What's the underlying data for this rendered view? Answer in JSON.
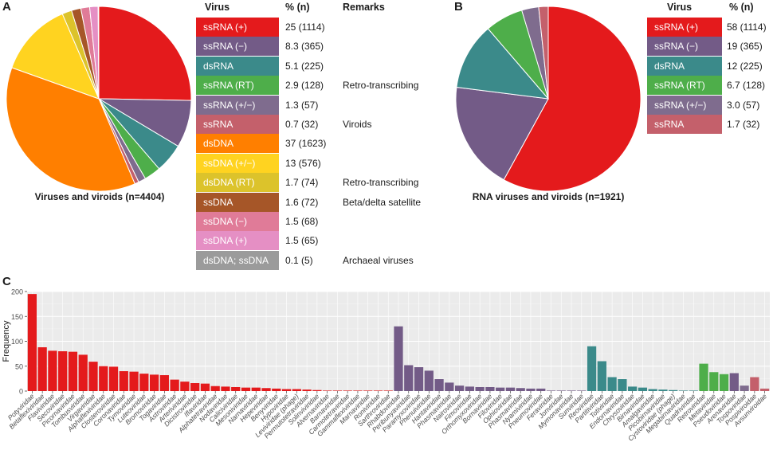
{
  "panels": {
    "a_letter": "A",
    "b_letter": "B",
    "c_letter": "C"
  },
  "legend_a": {
    "headers": {
      "virus": "Virus",
      "value": "% (n)",
      "remarks": "Remarks"
    },
    "rows": [
      {
        "label": "ssRNA (+)",
        "value": "25 (1114)",
        "remarks": "",
        "color": "#e41a1c"
      },
      {
        "label": "ssRNA (−)",
        "value": "8.3 (365)",
        "remarks": "",
        "color": "#735b87"
      },
      {
        "label": "dsRNA",
        "value": "5.1 (225)",
        "remarks": "",
        "color": "#3b8a8a"
      },
      {
        "label": "ssRNA (RT)",
        "value": "2.9 (128)",
        "remarks": "Retro-transcribing",
        "color": "#4eae4a"
      },
      {
        "label": "ssRNA (+/−)",
        "value": "1.3 (57)",
        "remarks": "",
        "color": "#7f6c8e"
      },
      {
        "label": "ssRNA",
        "value": "0.7 (32)",
        "remarks": "Viroids",
        "color": "#c4606b"
      },
      {
        "label": "dsDNA",
        "value": "37 (1623)",
        "remarks": "",
        "color": "#ff7f00"
      },
      {
        "label": "ssDNA (+/−)",
        "value": "13 (576)",
        "remarks": "",
        "color": "#ffd320"
      },
      {
        "label": "dsDNA (RT)",
        "value": "1.7 (74)",
        "remarks": "Retro-transcribing",
        "color": "#dcc32b"
      },
      {
        "label": "ssDNA",
        "value": "1.6 (72)",
        "remarks": "Beta/delta satellite",
        "color": "#a65628"
      },
      {
        "label": "ssDNA (−)",
        "value": "1.5 (68)",
        "remarks": "",
        "color": "#e07b98"
      },
      {
        "label": "ssDNA (+)",
        "value": "1.5 (65)",
        "remarks": "",
        "color": "#e58fc4"
      },
      {
        "label": "dsDNA; ssDNA",
        "value": "0.1 (5)",
        "remarks": "Archaeal viruses",
        "color": "#9b9b9b"
      }
    ]
  },
  "legend_b": {
    "headers": {
      "virus": "Virus",
      "value": "% (n)"
    },
    "rows": [
      {
        "label": "ssRNA (+)",
        "value": "58 (1114)",
        "color": "#e41a1c"
      },
      {
        "label": "ssRNA (−)",
        "value": "19 (365)",
        "color": "#735b87"
      },
      {
        "label": "dsRNA",
        "value": "12 (225)",
        "color": "#3b8a8a"
      },
      {
        "label": "ssRNA (RT)",
        "value": "6.7 (128)",
        "color": "#4eae4a"
      },
      {
        "label": "ssRNA (+/−)",
        "value": "3.0 (57)",
        "color": "#7f6c8e"
      },
      {
        "label": "ssRNA",
        "value": "1.7 (32)",
        "color": "#c4606b"
      }
    ]
  },
  "chart_data": [
    {
      "type": "pie",
      "title": "Viruses and viroids (n=4404)",
      "categories": [
        "ssRNA (+)",
        "ssRNA (−)",
        "dsRNA",
        "ssRNA (RT)",
        "ssRNA (+/−)",
        "ssRNA",
        "dsDNA",
        "ssDNA (+/−)",
        "dsDNA (RT)",
        "ssDNA",
        "ssDNA (−)",
        "ssDNA (+)",
        "dsDNA; ssDNA"
      ],
      "values": [
        1114,
        365,
        225,
        128,
        57,
        32,
        1623,
        576,
        74,
        72,
        68,
        65,
        5
      ],
      "colors": [
        "#e41a1c",
        "#735b87",
        "#3b8a8a",
        "#4eae4a",
        "#7f6c8e",
        "#c4606b",
        "#ff7f00",
        "#ffd320",
        "#dcc32b",
        "#a65628",
        "#e07b98",
        "#e58fc4",
        "#9b9b9b"
      ]
    },
    {
      "type": "pie",
      "title": "RNA viruses and viroids (n=1921)",
      "categories": [
        "ssRNA (+)",
        "ssRNA (−)",
        "dsRNA",
        "ssRNA (RT)",
        "ssRNA (+/−)",
        "ssRNA"
      ],
      "values": [
        1114,
        365,
        225,
        128,
        57,
        32
      ],
      "colors": [
        "#e41a1c",
        "#735b87",
        "#3b8a8a",
        "#4eae4a",
        "#7f6c8e",
        "#c4606b"
      ]
    },
    {
      "type": "bar",
      "title": "",
      "xlabel": "",
      "ylabel": "Frequency",
      "ylim": [
        0,
        200
      ],
      "yticks": [
        0,
        50,
        100,
        150,
        200
      ],
      "categories": [
        "Potyviridae",
        "Betaflexiviridae",
        "Flaviviridae",
        "Secoviridae",
        "Picornaviridae",
        "Tombusviridae",
        "Virgaviridae",
        "Alphaflexiviridae",
        "Closteroviridae",
        "Coronaviridae",
        "Tymoviridae",
        "Luteoviridae",
        "Bromoviridae",
        "Togaviridae",
        "Astroviridae",
        "Arteriviridae",
        "Dicistroviridae",
        "Iflaviridae",
        "Alphatetraviridae",
        "Nodaviridae",
        "Caliciviridae",
        "Mesoniviridae",
        "Narnaviridae",
        "Hepeviridae",
        "Benyviridae",
        "Hypoviridae",
        "Leviviridae (phage)",
        "Permutotetraviridae",
        "Solinviviridae",
        "Alvernaviridae",
        "Barnaviridae",
        "Carmotetraviridae",
        "Gammaflexiviridae",
        "Marnaviridae",
        "Roniviridae",
        "Sarthroviridae",
        "Rhabdoviridae",
        "Peribunyaviridae",
        "Paramyxoviridae",
        "Phenuiviridae",
        "Hantaviridae",
        "Phasmaviridae",
        "Nairoviridae",
        "Fimoviridae",
        "Orthomyxoviridae",
        "Bornaviridae",
        "Filoviridae",
        "Ophioviridae",
        "Phasmaviridae",
        "Nyamiviridae",
        "Pneumoviridae",
        "Feraviridae",
        "Jonviridae",
        "Mymonaviridae",
        "Sunviridae",
        "Reoviridae",
        "Partitiviridae",
        "Totiviridae",
        "Endornaviridae",
        "Chrysoviridae",
        "Birnaviridae",
        "Amalgaviridae",
        "Picobirnaviridae",
        "Cystoviridae (phage)",
        "Megabirnaviridae",
        "Quadriviridae",
        "Retroviridae",
        "Metaviridae",
        "Pseudoviridae",
        "Arenaviridae",
        "Tospoviridae",
        "Pospiviroidae",
        "Avsunviroidae"
      ],
      "values": [
        195,
        88,
        81,
        80,
        79,
        73,
        59,
        50,
        49,
        40,
        39,
        35,
        33,
        32,
        23,
        19,
        16,
        15,
        10,
        9,
        8,
        7,
        7,
        6,
        5,
        4,
        4,
        3,
        2,
        1,
        1,
        1,
        1,
        1,
        1,
        1,
        130,
        52,
        48,
        41,
        24,
        17,
        11,
        9,
        8,
        8,
        7,
        7,
        6,
        5,
        5,
        1,
        1,
        1,
        1,
        90,
        60,
        28,
        24,
        9,
        7,
        4,
        3,
        2,
        1,
        1,
        55,
        38,
        34,
        36,
        11,
        28,
        5
      ],
      "groups": [
        0,
        0,
        0,
        0,
        0,
        0,
        0,
        0,
        0,
        0,
        0,
        0,
        0,
        0,
        0,
        0,
        0,
        0,
        0,
        0,
        0,
        0,
        0,
        0,
        0,
        0,
        0,
        0,
        0,
        0,
        0,
        0,
        0,
        0,
        0,
        0,
        1,
        1,
        1,
        1,
        1,
        1,
        1,
        1,
        1,
        1,
        1,
        1,
        1,
        1,
        1,
        1,
        1,
        1,
        1,
        2,
        2,
        2,
        2,
        2,
        2,
        2,
        2,
        2,
        2,
        2,
        3,
        3,
        3,
        1,
        4,
        5,
        5
      ],
      "group_colors": [
        "#e41a1c",
        "#735b87",
        "#3b8a8a",
        "#4eae4a",
        "#7f6c8e",
        "#c4606b"
      ],
      "grid": true
    }
  ]
}
